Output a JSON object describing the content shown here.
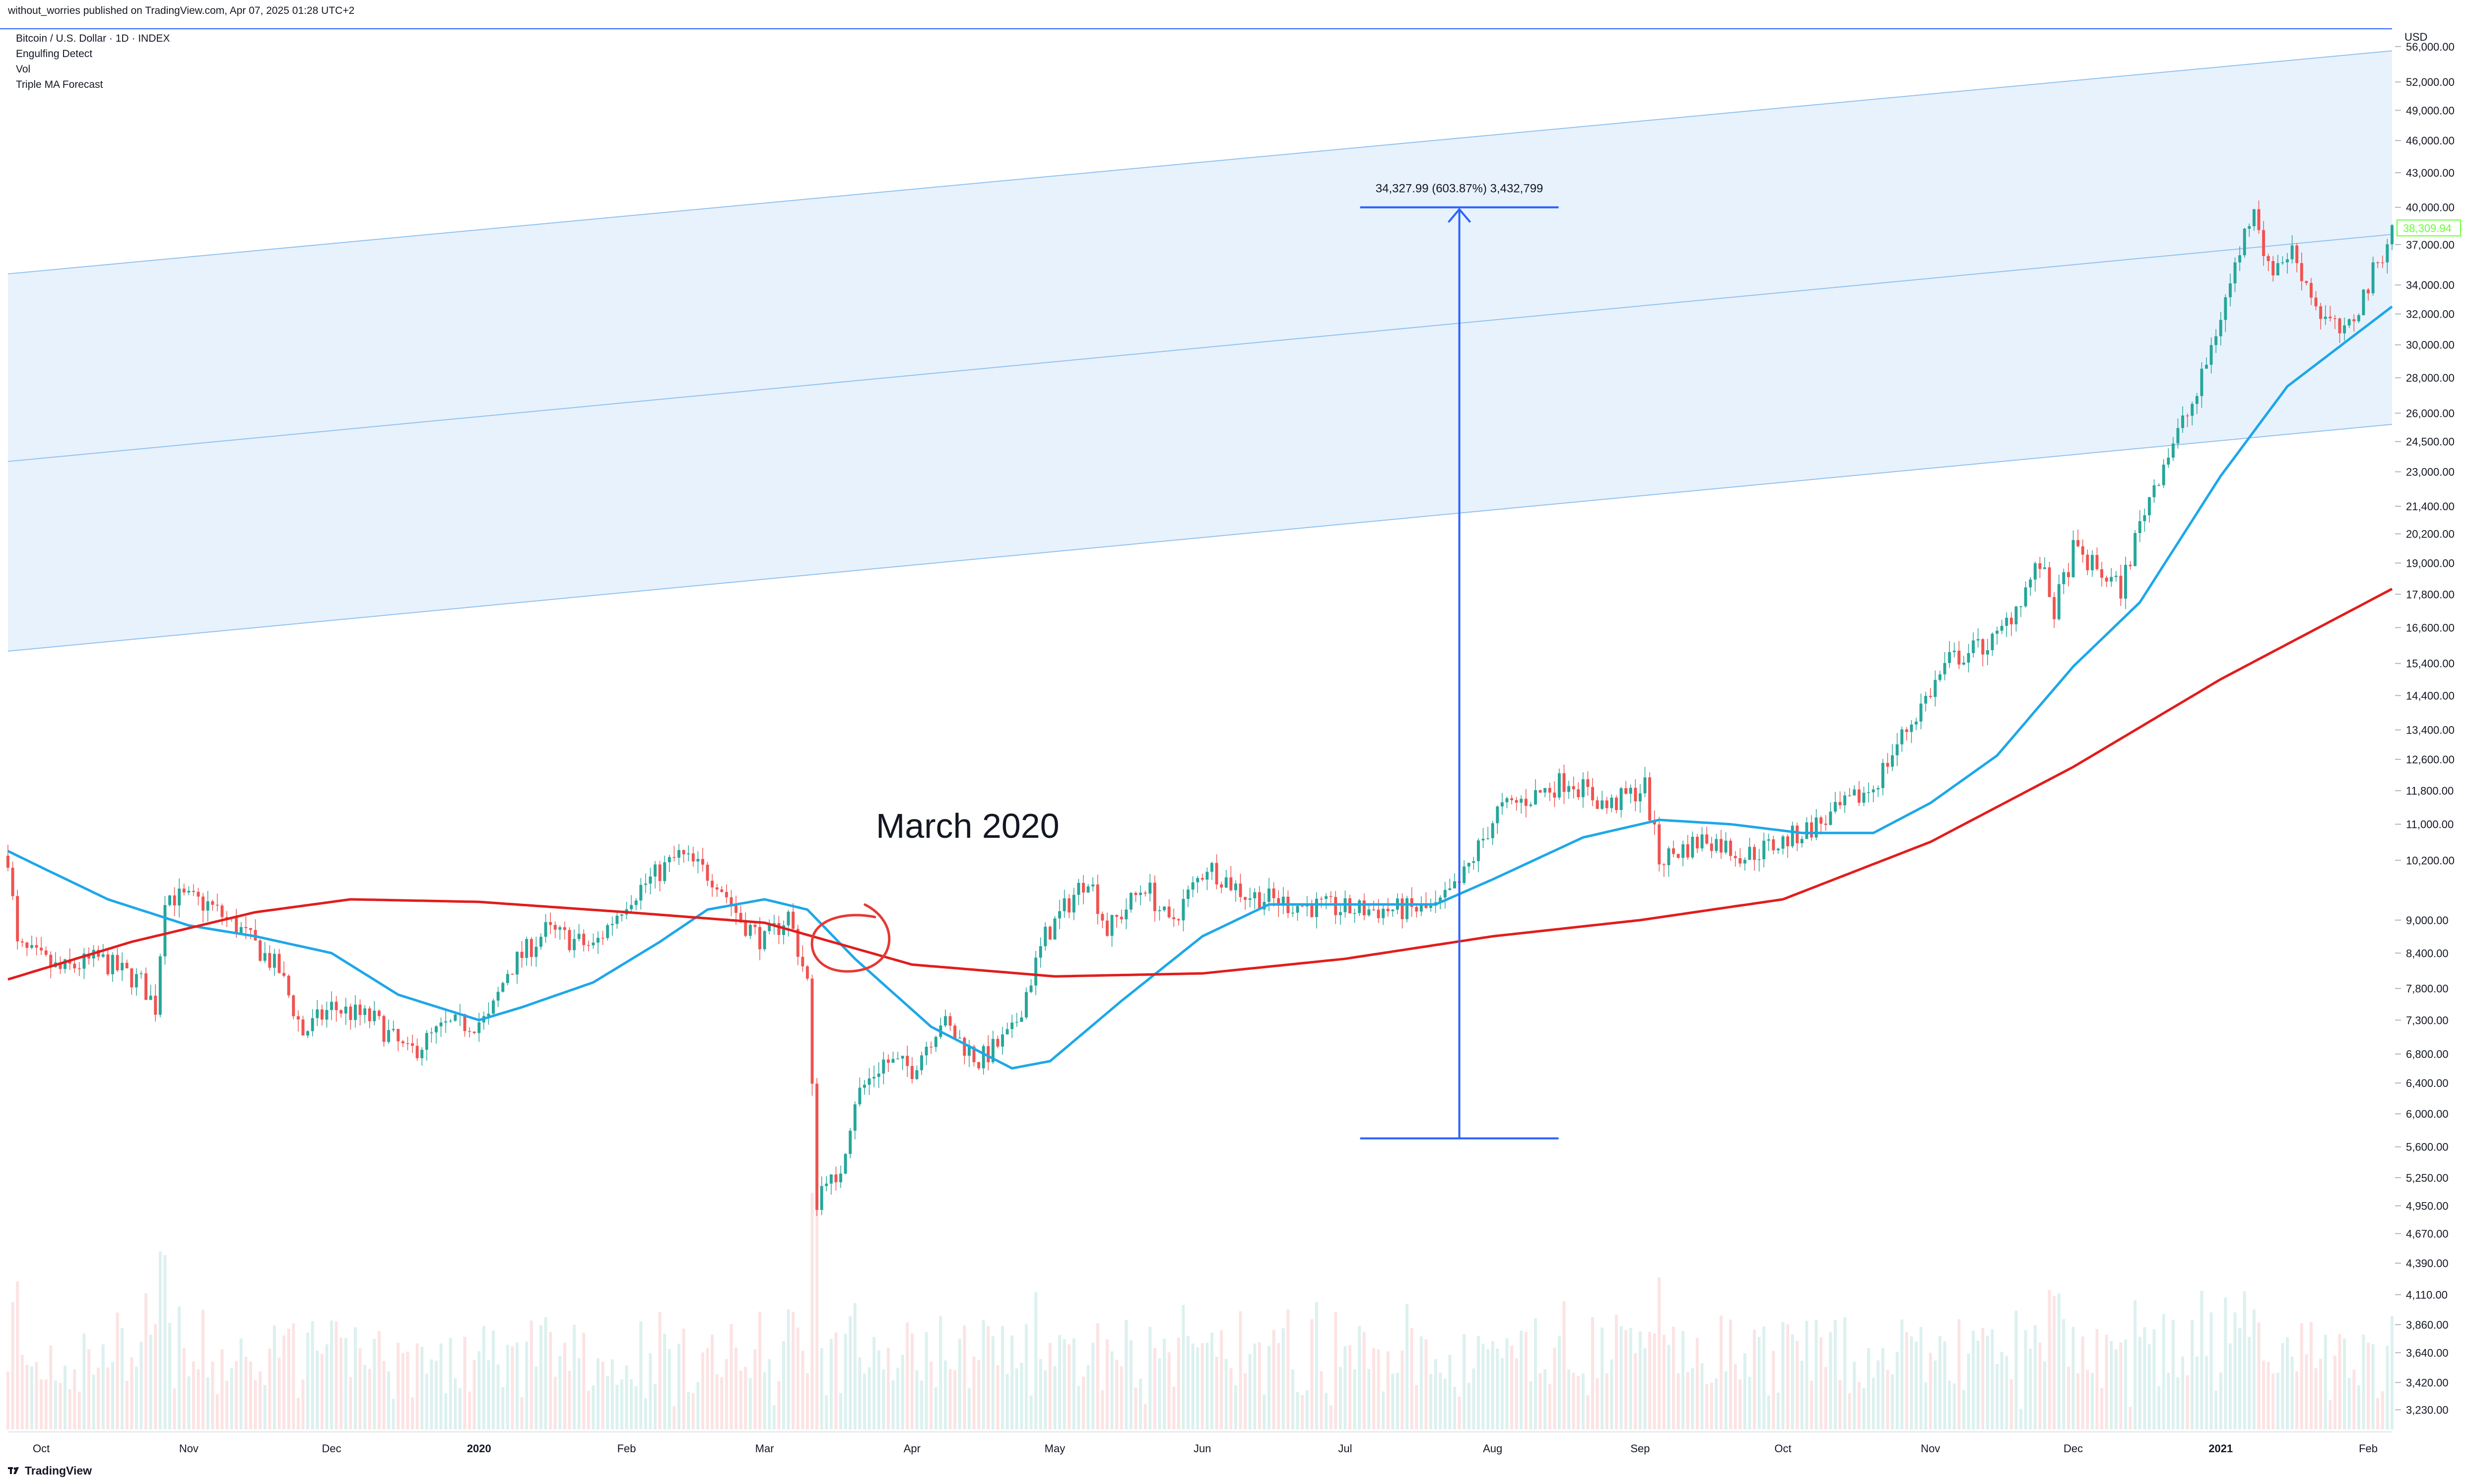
{
  "published_line": "without_worries published on TradingView.com, Apr 07, 2025 01:28 UTC+2",
  "legend": {
    "title": "Bitcoin / U.S. Dollar · 1D · INDEX",
    "indicators": [
      "Engulfing Detect",
      "Vol",
      "Triple MA Forecast"
    ]
  },
  "footer": {
    "brand": "TradingView"
  },
  "currency_label": "USD",
  "colors": {
    "up_candle": "#26a69a",
    "down_candle": "#ef5350",
    "engulf_up": "#66ff33",
    "engulf_down": "#cc0000",
    "ma_fast": "#1ea7e8",
    "ma_slow": "#e11d1d",
    "channel_fill": "#e8f2fd",
    "channel_line": "#90c2ee",
    "measure": "#2962ff",
    "annotation": "#e53935"
  },
  "chart_data": {
    "type": "candlestick",
    "scale": "log",
    "ylim": [
      3100,
      58000
    ],
    "x_range": [
      "2019-09-24",
      "2021-02-06"
    ],
    "y_ticks": [
      3230,
      3420,
      3640,
      3860,
      4110,
      4390,
      4670,
      4950,
      5250,
      5600,
      6000,
      6400,
      6800,
      7300,
      7800,
      8400,
      9000,
      10200,
      11000,
      11800,
      12600,
      13400,
      14400,
      15400,
      16600,
      17800,
      19000,
      20200,
      21400,
      23000,
      24500,
      26000,
      28000,
      30000,
      32000,
      34000,
      37000,
      40000,
      43000,
      46000,
      49000,
      52000,
      56000
    ],
    "y_tick_labels": [
      "3,230.00",
      "3,420.00",
      "3,640.00",
      "3,860.00",
      "4,110.00",
      "4,390.00",
      "4,670.00",
      "4,950.00",
      "5,250.00",
      "5,600.00",
      "6,000.00",
      "6,400.00",
      "6,800.00",
      "7,300.00",
      "7,800.00",
      "8,400.00",
      "9,000.00",
      "10,200.00",
      "11,000.00",
      "11,800.00",
      "12,600.00",
      "13,400.00",
      "14,400.00",
      "15,400.00",
      "16,600.00",
      "17,800.00",
      "19,000.00",
      "20,200.00",
      "21,400.00",
      "23,000.00",
      "24,500.00",
      "26,000.00",
      "28,000.00",
      "30,000.00",
      "32,000.00",
      "34,000.00",
      "37,000.00",
      "40,000.00",
      "43,000.00",
      "46,000.00",
      "49,000.00",
      "52,000.00",
      "56,000.00"
    ],
    "x_ticks": [
      {
        "date": "2019-10-01",
        "label": "Oct",
        "bold": false
      },
      {
        "date": "2019-11-01",
        "label": "Nov",
        "bold": false
      },
      {
        "date": "2019-12-01",
        "label": "Dec",
        "bold": false
      },
      {
        "date": "2020-01-01",
        "label": "2020",
        "bold": true
      },
      {
        "date": "2020-02-01",
        "label": "Feb",
        "bold": false
      },
      {
        "date": "2020-03-01",
        "label": "Mar",
        "bold": false
      },
      {
        "date": "2020-04-01",
        "label": "Apr",
        "bold": false
      },
      {
        "date": "2020-05-01",
        "label": "May",
        "bold": false
      },
      {
        "date": "2020-06-01",
        "label": "Jun",
        "bold": false
      },
      {
        "date": "2020-07-01",
        "label": "Jul",
        "bold": false
      },
      {
        "date": "2020-08-01",
        "label": "Aug",
        "bold": false
      },
      {
        "date": "2020-09-01",
        "label": "Sep",
        "bold": false
      },
      {
        "date": "2020-10-01",
        "label": "Oct",
        "bold": false
      },
      {
        "date": "2020-11-01",
        "label": "Nov",
        "bold": false
      },
      {
        "date": "2020-12-01",
        "label": "Dec",
        "bold": false
      },
      {
        "date": "2021-01-01",
        "label": "2021",
        "bold": true
      },
      {
        "date": "2021-02-01",
        "label": "Feb",
        "bold": false
      }
    ],
    "price_anchors": [
      [
        "2019-09-24",
        10300
      ],
      [
        "2019-09-26",
        8500
      ],
      [
        "2019-10-05",
        8100
      ],
      [
        "2019-10-13",
        8300
      ],
      [
        "2019-10-22",
        7900
      ],
      [
        "2019-10-25",
        7500
      ],
      [
        "2019-10-27",
        9500
      ],
      [
        "2019-11-05",
        9300
      ],
      [
        "2019-11-12",
        8800
      ],
      [
        "2019-11-20",
        8100
      ],
      [
        "2019-11-25",
        7100
      ],
      [
        "2019-12-01",
        7500
      ],
      [
        "2019-12-10",
        7300
      ],
      [
        "2019-12-17",
        6800
      ],
      [
        "2019-12-25",
        7200
      ],
      [
        "2020-01-03",
        7300
      ],
      [
        "2020-01-07",
        8100
      ],
      [
        "2020-01-15",
        8800
      ],
      [
        "2020-01-25",
        8500
      ],
      [
        "2020-02-01",
        9400
      ],
      [
        "2020-02-12",
        10300
      ],
      [
        "2020-02-20",
        9800
      ],
      [
        "2020-02-25",
        9000
      ],
      [
        "2020-03-01",
        8600
      ],
      [
        "2020-03-06",
        9100
      ],
      [
        "2020-03-10",
        7900
      ],
      [
        "2020-03-12",
        5000
      ],
      [
        "2020-03-14",
        5300
      ],
      [
        "2020-03-16",
        5100
      ],
      [
        "2020-03-20",
        6200
      ],
      [
        "2020-03-26",
        6700
      ],
      [
        "2020-04-01",
        6600
      ],
      [
        "2020-04-07",
        7300
      ],
      [
        "2020-04-15",
        6700
      ],
      [
        "2020-04-22",
        7100
      ],
      [
        "2020-04-29",
        8700
      ],
      [
        "2020-05-08",
        9900
      ],
      [
        "2020-05-12",
        8800
      ],
      [
        "2020-05-20",
        9700
      ],
      [
        "2020-05-25",
        8900
      ],
      [
        "2020-06-02",
        10100
      ],
      [
        "2020-06-10",
        9500
      ],
      [
        "2020-06-20",
        9300
      ],
      [
        "2020-07-01",
        9200
      ],
      [
        "2020-07-20",
        9200
      ],
      [
        "2020-07-25",
        9700
      ],
      [
        "2020-08-02",
        11300
      ],
      [
        "2020-08-10",
        11700
      ],
      [
        "2020-08-17",
        12100
      ],
      [
        "2020-08-25",
        11400
      ],
      [
        "2020-09-02",
        11900
      ],
      [
        "2020-09-05",
        10200
      ],
      [
        "2020-09-15",
        10700
      ],
      [
        "2020-09-23",
        10300
      ],
      [
        "2020-10-01",
        10600
      ],
      [
        "2020-10-10",
        11100
      ],
      [
        "2020-10-20",
        11900
      ],
      [
        "2020-10-25",
        13000
      ],
      [
        "2020-11-05",
        15500
      ],
      [
        "2020-11-15",
        16200
      ],
      [
        "2020-11-24",
        19000
      ],
      [
        "2020-11-27",
        17200
      ],
      [
        "2020-12-01",
        19500
      ],
      [
        "2020-12-11",
        18000
      ],
      [
        "2020-12-16",
        21300
      ],
      [
        "2020-12-20",
        23500
      ],
      [
        "2020-12-27",
        27000
      ],
      [
        "2021-01-02",
        33000
      ],
      [
        "2021-01-08",
        40500
      ],
      [
        "2021-01-11",
        35000
      ],
      [
        "2021-01-16",
        36500
      ],
      [
        "2021-01-22",
        32000
      ],
      [
        "2021-01-27",
        30500
      ],
      [
        "2021-02-01",
        34000
      ],
      [
        "2021-02-06",
        38300
      ]
    ],
    "series": [
      {
        "name": "Fast MA",
        "anchors": [
          [
            "2019-09-24",
            10400
          ],
          [
            "2019-09-30",
            10100
          ],
          [
            "2019-10-15",
            9400
          ],
          [
            "2019-11-01",
            8900
          ],
          [
            "2019-11-15",
            8700
          ],
          [
            "2019-12-01",
            8400
          ],
          [
            "2019-12-15",
            7700
          ],
          [
            "2020-01-01",
            7300
          ],
          [
            "2020-01-10",
            7500
          ],
          [
            "2020-01-25",
            7900
          ],
          [
            "2020-02-08",
            8600
          ],
          [
            "2020-02-18",
            9200
          ],
          [
            "2020-03-01",
            9400
          ],
          [
            "2020-03-10",
            9200
          ],
          [
            "2020-03-20",
            8300
          ],
          [
            "2020-04-05",
            7200
          ],
          [
            "2020-04-22",
            6600
          ],
          [
            "2020-04-30",
            6700
          ],
          [
            "2020-05-15",
            7600
          ],
          [
            "2020-06-01",
            8700
          ],
          [
            "2020-06-15",
            9300
          ],
          [
            "2020-07-01",
            9300
          ],
          [
            "2020-07-20",
            9300
          ],
          [
            "2020-08-01",
            9800
          ],
          [
            "2020-08-20",
            10700
          ],
          [
            "2020-09-05",
            11100
          ],
          [
            "2020-09-20",
            11000
          ],
          [
            "2020-10-05",
            10800
          ],
          [
            "2020-10-20",
            10800
          ],
          [
            "2020-11-01",
            11500
          ],
          [
            "2020-11-15",
            12700
          ],
          [
            "2020-12-01",
            15300
          ],
          [
            "2020-12-15",
            17500
          ],
          [
            "2021-01-01",
            22800
          ],
          [
            "2021-01-15",
            27500
          ],
          [
            "2021-02-06",
            32500
          ]
        ]
      },
      {
        "name": "Slow MA",
        "anchors": [
          [
            "2019-09-24",
            7950
          ],
          [
            "2019-10-20",
            8600
          ],
          [
            "2019-11-15",
            9150
          ],
          [
            "2019-12-05",
            9400
          ],
          [
            "2020-01-01",
            9350
          ],
          [
            "2020-02-01",
            9150
          ],
          [
            "2020-03-01",
            8950
          ],
          [
            "2020-04-01",
            8200
          ],
          [
            "2020-05-01",
            8000
          ],
          [
            "2020-06-01",
            8050
          ],
          [
            "2020-07-01",
            8300
          ],
          [
            "2020-08-01",
            8700
          ],
          [
            "2020-09-01",
            9000
          ],
          [
            "2020-10-01",
            9400
          ],
          [
            "2020-11-01",
            10600
          ],
          [
            "2020-12-01",
            12400
          ],
          [
            "2021-01-01",
            14900
          ],
          [
            "2021-02-06",
            18000
          ]
        ]
      }
    ],
    "channel": {
      "start_date": "2019-09-24",
      "end_date": "2021-02-06",
      "upper": [
        34800,
        55500
      ],
      "middle": [
        23500,
        37800
      ],
      "lower": [
        15800,
        25400
      ]
    },
    "measure": {
      "date": "2020-07-25",
      "from": 5700,
      "to": 40000,
      "label": "34,327.99 (603.87%) 3,432,799"
    },
    "annotation": {
      "text": "March 2020",
      "circle_date": "2020-03-20",
      "circle_price": 8600
    },
    "last_price": {
      "value": 38309.94,
      "label": "38,309.94"
    }
  }
}
